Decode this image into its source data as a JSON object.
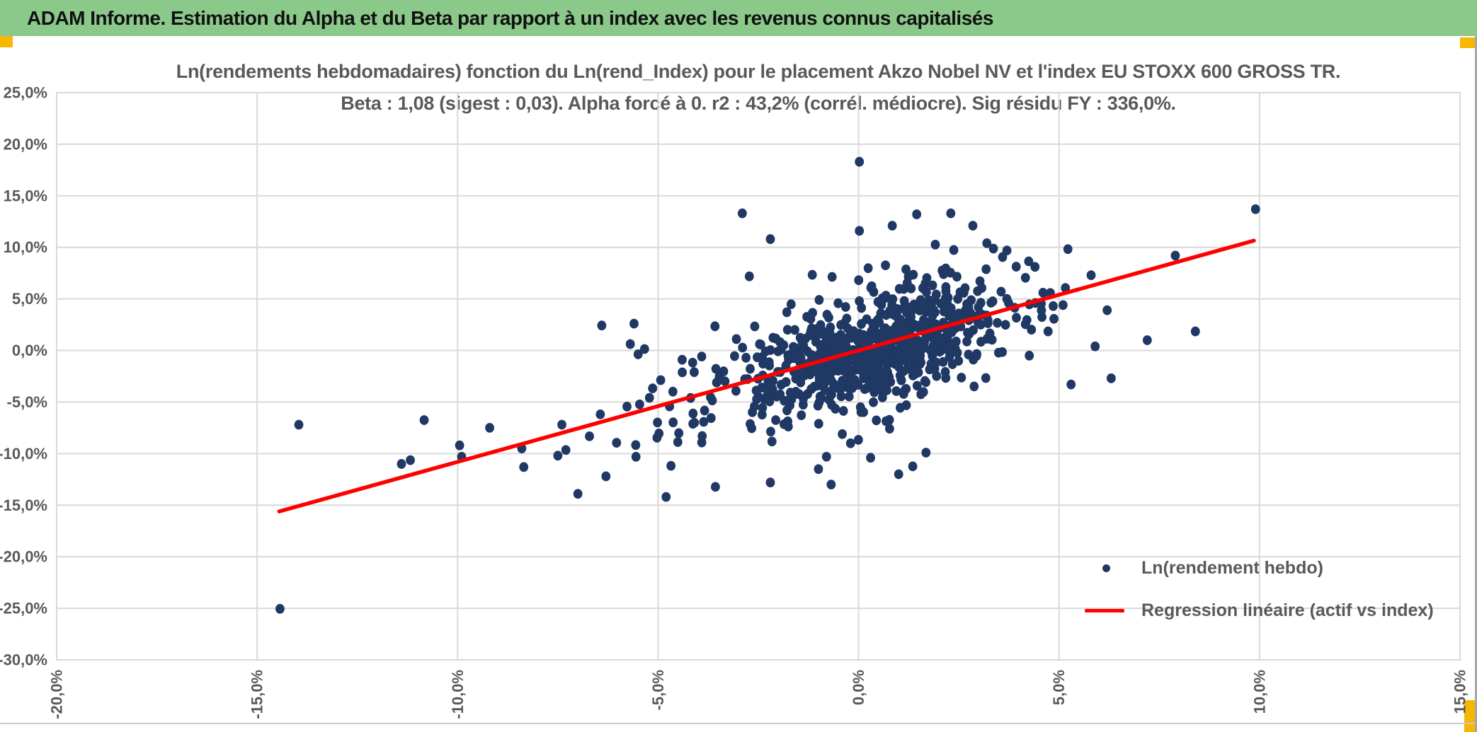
{
  "banner": {
    "title": "ADAM Informe. Estimation du Alpha et du Beta par rapport à un index avec les revenus connus capitalisés"
  },
  "colors": {
    "banner_green": "#8BC98B",
    "banner_text": "#111111",
    "accent_yellow": "#F7B700",
    "marker_navy": "#1F3864",
    "regression_red": "#FF0000",
    "text_gray": "#595959",
    "gridline_gray": "#D9D9D9",
    "window_border_gray": "#A6A6A6"
  },
  "chart_data": {
    "type": "scatter",
    "title_line1": "Ln(rendements hebdomadaires) fonction du Ln(rend_Index) pour le placement Akzo Nobel NV et l'index EU STOXX 600 GROSS TR.",
    "title_line2": "Beta : 1,08 (sigest : 0,03). Alpha forcé à 0. r2 : 43,2% (corrél. médiocre). Sig résidu FY : 336,0%.",
    "stats": {
      "beta": "1,08",
      "sigest": "0,03",
      "alpha_force": "0",
      "r2": "43,2%",
      "correlation_quality": "corrél. médiocre",
      "sig_residu_fy": "336,0%"
    },
    "x_axis": {
      "min": -20,
      "max": 15,
      "tick_values": [
        -20,
        -15,
        -10,
        -5,
        0,
        5,
        10,
        15
      ],
      "tick_labels": [
        "-20,0%",
        "-15,0%",
        "-10,0%",
        "-5,0%",
        "0,0%",
        "5,0%",
        "10,0%",
        "15,0%"
      ],
      "label_rotation_deg": -90,
      "gridlines": true,
      "units": "percent"
    },
    "y_axis": {
      "min": -30,
      "max": 25,
      "tick_values": [
        25,
        20,
        15,
        10,
        5,
        0,
        -5,
        -10,
        -15,
        -20,
        -25,
        -30
      ],
      "tick_labels": [
        "25,0%",
        "20,0%",
        "15,0%",
        "10,0%",
        "5,0%",
        "0,0%",
        "-5,0%",
        "-10,0%",
        "-15,0%",
        "-20,0%",
        "-25,0%",
        "-30,0%"
      ],
      "gridlines": true,
      "units": "percent"
    },
    "series": [
      {
        "name": "Ln(rendement hebdo)",
        "type": "scatter",
        "marker_color": "#1F3864",
        "outlier_points": [
          [
            -14.43,
            -25.05
          ],
          [
            -13.96,
            -7.2
          ],
          [
            -11.4,
            -11.0
          ],
          [
            -9.95,
            -9.2
          ],
          [
            -9.9,
            -10.3
          ],
          [
            -9.2,
            -7.5
          ],
          [
            -8.4,
            -9.5
          ],
          [
            -8.35,
            -11.3
          ],
          [
            -7.5,
            -10.2
          ],
          [
            -7.4,
            -7.2
          ],
          [
            -7.3,
            -9.65
          ],
          [
            -7.0,
            -13.9
          ],
          [
            -6.3,
            -12.2
          ],
          [
            -4.8,
            -14.2
          ],
          [
            -3.9,
            -8.3
          ],
          [
            -2.2,
            -12.8
          ],
          [
            -1.0,
            -11.5
          ],
          [
            -0.8,
            -10.3
          ],
          [
            0.3,
            -10.4
          ],
          [
            1.0,
            -12.0
          ],
          [
            -0.2,
            -9.0
          ],
          [
            0.02,
            18.3
          ],
          [
            0.02,
            11.6
          ],
          [
            0.84,
            12.1
          ],
          [
            -2.9,
            13.3
          ],
          [
            -2.2,
            10.8
          ],
          [
            1.45,
            13.2
          ],
          [
            2.3,
            13.3
          ],
          [
            2.85,
            12.1
          ],
          [
            3.2,
            10.4
          ],
          [
            3.7,
            9.7
          ],
          [
            4.4,
            8.1
          ],
          [
            9.9,
            13.7
          ],
          [
            7.9,
            9.2
          ],
          [
            5.8,
            7.3
          ],
          [
            6.2,
            3.9
          ],
          [
            8.4,
            1.85
          ],
          [
            7.2,
            1.0
          ],
          [
            5.9,
            0.4
          ],
          [
            6.3,
            -2.7
          ],
          [
            5.3,
            -3.3
          ],
          [
            4.6,
            5.6
          ],
          [
            5.1,
            4.4
          ],
          [
            -5.6,
            2.6
          ],
          [
            -4.4,
            -0.9
          ]
        ],
        "cluster_generator": {
          "seed": 7,
          "components": [
            {
              "n": 620,
              "x_mean": 0.55,
              "x_sd": 1.4,
              "resid_mean": 0,
              "resid_sd": 2.4
            },
            {
              "n": 180,
              "x_mean": -1.0,
              "x_sd": 3.1,
              "resid_mean": -0.3,
              "resid_sd": 4.1
            }
          ],
          "x_bounds": [
            -12.6,
            9.0
          ],
          "y_bounds": [
            -14.6,
            13.9
          ]
        }
      },
      {
        "name": "Regression linéaire (actif vs index)",
        "type": "line",
        "color": "#FF0000",
        "slope": 1.08,
        "intercept": 0,
        "x_start": -14.45,
        "x_end": 9.86
      }
    ],
    "legend": {
      "position": "bottom-right",
      "items": [
        {
          "label": "Ln(rendement hebdo)",
          "marker": "dot"
        },
        {
          "label": "Regression linéaire (actif vs index)",
          "marker": "line"
        }
      ]
    }
  }
}
